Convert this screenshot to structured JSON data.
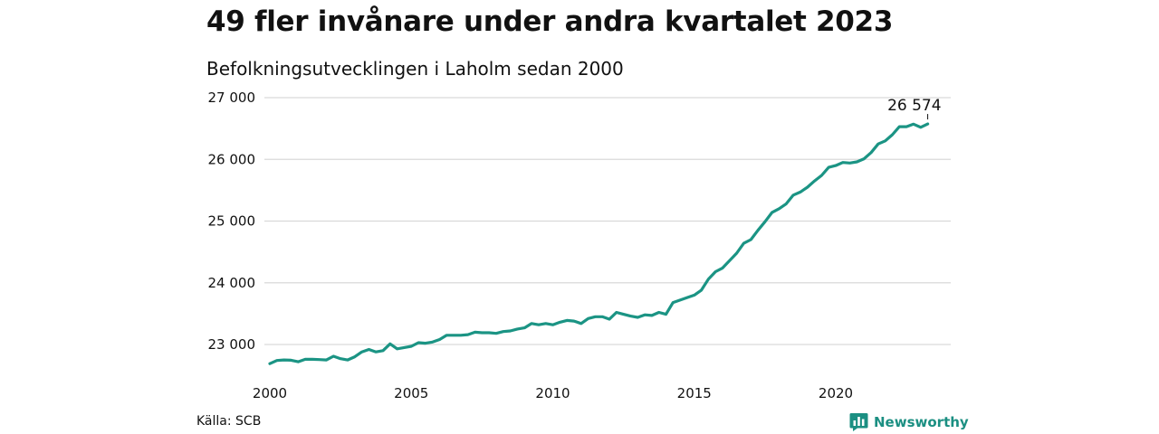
{
  "header": {
    "title": "49 fler invånare under andra kvartalet 2023",
    "subtitle": "Befolkningsutvecklingen i Laholm sedan 2000"
  },
  "footer": {
    "source": "Källa: SCB",
    "brand": "Newsworthy"
  },
  "colors": {
    "line": "#1b9484",
    "grid": "#d9d9d9",
    "brand": "#1b8f82"
  },
  "icons": {
    "brand_logo": "bar-chart-speech-bubble-icon"
  },
  "chart_data": {
    "type": "line",
    "title": "49 fler invånare under andra kvartalet 2023",
    "subtitle": "Befolkningsutvecklingen i Laholm sedan 2000",
    "xlabel": "",
    "ylabel": "",
    "xlim": [
      2000,
      2024
    ],
    "ylim": [
      22600,
      27000
    ],
    "grid": true,
    "legend": "none",
    "x_ticks": [
      2000,
      2005,
      2010,
      2015,
      2020
    ],
    "x_tick_labels": [
      "2000",
      "2005",
      "2010",
      "2015",
      "2020"
    ],
    "y_ticks": [
      23000,
      24000,
      25000,
      26000,
      27000
    ],
    "y_tick_labels": [
      "23 000",
      "24 000",
      "25 000",
      "26 000",
      "27 000"
    ],
    "end_label": "26 574",
    "series": [
      {
        "x": [
          2000.0,
          2000.25,
          2000.5,
          2000.75,
          2001.0,
          2001.25,
          2001.5,
          2001.75,
          2002.0,
          2002.25,
          2002.5,
          2002.75,
          2003.0,
          2003.25,
          2003.5,
          2003.75,
          2004.0,
          2004.25,
          2004.5,
          2004.75,
          2005.0,
          2005.25,
          2005.5,
          2005.75,
          2006.0,
          2006.25,
          2006.5,
          2006.75,
          2007.0,
          2007.25,
          2007.5,
          2007.75,
          2008.0,
          2008.25,
          2008.5,
          2008.75,
          2009.0,
          2009.25,
          2009.5,
          2009.75,
          2010.0,
          2010.25,
          2010.5,
          2010.75,
          2011.0,
          2011.25,
          2011.5,
          2011.75,
          2012.0,
          2012.25,
          2012.5,
          2012.75,
          2013.0,
          2013.25,
          2013.5,
          2013.75,
          2014.0,
          2014.25,
          2014.5,
          2014.75,
          2015.0,
          2015.25,
          2015.5,
          2015.75,
          2016.0,
          2016.25,
          2016.5,
          2016.75,
          2017.0,
          2017.25,
          2017.5,
          2017.75,
          2018.0,
          2018.25,
          2018.5,
          2018.75,
          2019.0,
          2019.25,
          2019.5,
          2019.75,
          2020.0,
          2020.25,
          2020.5,
          2020.75,
          2021.0,
          2021.25,
          2021.5,
          2021.75,
          2022.0,
          2022.25,
          2022.5,
          2022.75,
          2023.0,
          2023.25
        ],
        "values": [
          22690,
          22740,
          22750,
          22745,
          22720,
          22760,
          22760,
          22755,
          22750,
          22810,
          22770,
          22750,
          22800,
          22880,
          22920,
          22880,
          22900,
          23010,
          22930,
          22950,
          22970,
          23030,
          23020,
          23040,
          23080,
          23150,
          23150,
          23150,
          23160,
          23200,
          23190,
          23190,
          23180,
          23210,
          23220,
          23250,
          23270,
          23340,
          23320,
          23340,
          23320,
          23360,
          23390,
          23380,
          23340,
          23420,
          23450,
          23450,
          23410,
          23520,
          23490,
          23460,
          23440,
          23480,
          23470,
          23520,
          23490,
          23680,
          23720,
          23760,
          23800,
          23880,
          24060,
          24180,
          24240,
          24360,
          24480,
          24640,
          24700,
          24850,
          24990,
          25140,
          25200,
          25280,
          25420,
          25470,
          25550,
          25650,
          25740,
          25870,
          25900,
          25950,
          25940,
          25960,
          26010,
          26110,
          26250,
          26300,
          26400,
          26530,
          26530,
          26570,
          26520,
          26574
        ]
      }
    ]
  }
}
